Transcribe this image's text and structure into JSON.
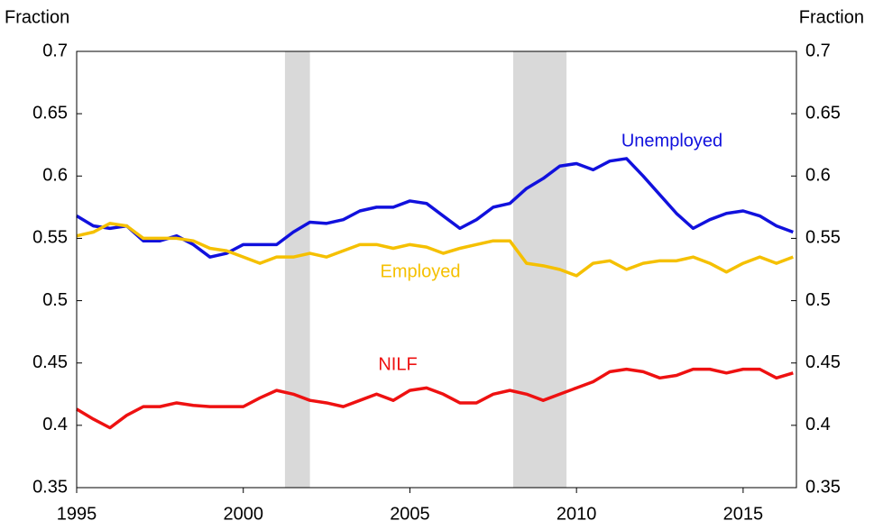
{
  "chart_data": {
    "type": "line",
    "ylabel": "Fraction",
    "y2label": "Fraction",
    "x": [
      1995,
      1995.5,
      1996,
      1996.5,
      1997,
      1997.5,
      1998,
      1998.5,
      1999,
      1999.5,
      2000,
      2000.5,
      2001,
      2001.5,
      2002,
      2002.5,
      2003,
      2003.5,
      2004,
      2004.5,
      2005,
      2005.5,
      2006,
      2006.5,
      2007,
      2007.5,
      2008,
      2008.5,
      2009,
      2009.5,
      2010,
      2010.5,
      2011,
      2011.5,
      2012,
      2012.5,
      2013,
      2013.5,
      2014,
      2014.5,
      2015,
      2015.5,
      2016,
      2016.5
    ],
    "series": [
      {
        "name": "Unemployed",
        "color": "#1111dd",
        "values": [
          0.568,
          0.56,
          0.558,
          0.56,
          0.548,
          0.548,
          0.552,
          0.545,
          0.535,
          0.538,
          0.545,
          0.545,
          0.545,
          0.555,
          0.563,
          0.562,
          0.565,
          0.572,
          0.575,
          0.575,
          0.58,
          0.578,
          0.568,
          0.558,
          0.565,
          0.575,
          0.578,
          0.59,
          0.598,
          0.608,
          0.61,
          0.605,
          0.612,
          0.614,
          0.6,
          0.585,
          0.57,
          0.558,
          0.565,
          0.57,
          0.572,
          0.568,
          0.56,
          0.555
        ]
      },
      {
        "name": "Employed",
        "color": "#f5c000",
        "values": [
          0.552,
          0.555,
          0.562,
          0.56,
          0.55,
          0.55,
          0.55,
          0.548,
          0.542,
          0.54,
          0.535,
          0.53,
          0.535,
          0.535,
          0.538,
          0.535,
          0.54,
          0.545,
          0.545,
          0.542,
          0.545,
          0.543,
          0.538,
          0.542,
          0.545,
          0.548,
          0.548,
          0.53,
          0.528,
          0.525,
          0.52,
          0.53,
          0.532,
          0.525,
          0.53,
          0.532,
          0.532,
          0.535,
          0.53,
          0.523,
          0.53,
          0.535,
          0.53,
          0.535
        ]
      },
      {
        "name": "NILF",
        "color": "#ee1111",
        "values": [
          0.413,
          0.405,
          0.398,
          0.408,
          0.415,
          0.415,
          0.418,
          0.416,
          0.415,
          0.415,
          0.415,
          0.422,
          0.428,
          0.425,
          0.42,
          0.418,
          0.415,
          0.42,
          0.425,
          0.42,
          0.428,
          0.43,
          0.425,
          0.418,
          0.418,
          0.425,
          0.428,
          0.425,
          0.42,
          0.425,
          0.43,
          0.435,
          0.443,
          0.445,
          0.443,
          0.438,
          0.44,
          0.445,
          0.445,
          0.442,
          0.445,
          0.445,
          0.438,
          0.442
        ]
      }
    ],
    "shaded_spans": [
      [
        2001.25,
        2002
      ],
      [
        2008.1,
        2009.7
      ]
    ],
    "shade_color": "#d9d9d9",
    "xlim": [
      1995,
      2016.6
    ],
    "xticks": [
      1995,
      2000,
      2005,
      2010,
      2015
    ],
    "ylim": [
      0.35,
      0.7
    ],
    "yticks": [
      0.35,
      0.4,
      0.45,
      0.5,
      0.55,
      0.6,
      0.65,
      0.7
    ],
    "y2lim": [
      0.35,
      0.7
    ],
    "y2ticks": [
      0.35,
      0.4,
      0.45,
      0.5,
      0.55,
      0.6,
      0.65,
      0.7
    ],
    "grid": false
  }
}
